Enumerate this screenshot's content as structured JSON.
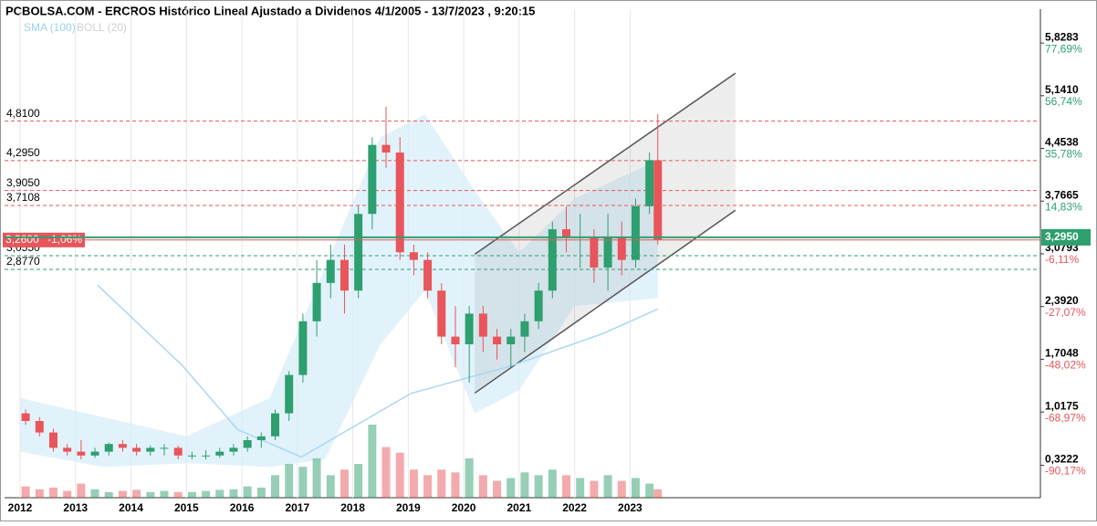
{
  "chart_data": {
    "type": "candlestick",
    "title": "PCBOLSA.COM - ERCROS Histórico Lineal Ajustado a Dividenos 4/1/2005 - 13/7/2023 , 9:20:15",
    "indicators": [
      "SMA (100)",
      "BOLL (20)"
    ],
    "up_color": "#2e9f6e",
    "down_color": "#e8555a",
    "xlim": [
      2011.72,
      2030.4
    ],
    "xticks": [
      2012,
      2013,
      2014,
      2015,
      2016,
      2017,
      2018,
      2019,
      2020,
      2021,
      2022,
      2023
    ],
    "ylim": [
      -0.1,
      6.27
    ],
    "yticks": [
      {
        "value": 5.8283,
        "label": "5,8283"
      },
      {
        "value": 5.141,
        "label": "5,1410"
      },
      {
        "value": 4.4538,
        "label": "4,4538"
      },
      {
        "value": 3.7665,
        "label": "3,7665"
      },
      {
        "value": 3.0793,
        "label": "3,0793"
      },
      {
        "value": 2.392,
        "label": "2,3920"
      },
      {
        "value": 1.7048,
        "label": "1,7048"
      },
      {
        "value": 1.0175,
        "label": "1,0175"
      },
      {
        "value": 0.3222,
        "label": "0,3222"
      }
    ],
    "ytick_changes": [
      "77,69%",
      "56,74%",
      "35,78%",
      "14,83%",
      "-6,11%",
      "-27,07%",
      "-48,02%",
      "-68,97%",
      "-90,17%"
    ],
    "x": [
      2012.1,
      2012.35,
      2012.6,
      2012.85,
      2013.1,
      2013.35,
      2013.6,
      2013.85,
      2014.1,
      2014.35,
      2014.6,
      2014.85,
      2015.1,
      2015.35,
      2015.6,
      2015.85,
      2016.1,
      2016.35,
      2016.6,
      2016.85,
      2017.1,
      2017.35,
      2017.6,
      2017.85,
      2018.1,
      2018.35,
      2018.6,
      2018.85,
      2019.1,
      2019.35,
      2019.6,
      2019.85,
      2020.1,
      2020.35,
      2020.6,
      2020.85,
      2021.1,
      2021.35,
      2021.6,
      2021.85,
      2022.1,
      2022.35,
      2022.6,
      2022.85,
      2023.1,
      2023.35,
      2023.5
    ],
    "open": [
      1.0,
      0.9,
      0.75,
      0.55,
      0.5,
      0.45,
      0.5,
      0.6,
      0.55,
      0.5,
      0.55,
      0.55,
      0.45,
      0.45,
      0.45,
      0.5,
      0.55,
      0.65,
      0.7,
      1.0,
      1.5,
      2.2,
      2.7,
      3.0,
      2.6,
      3.6,
      4.5,
      4.4,
      3.1,
      3.0,
      2.6,
      2.0,
      1.9,
      2.3,
      2.0,
      1.9,
      2.0,
      2.2,
      2.6,
      3.4,
      3.3,
      3.3,
      2.9,
      3.3,
      3.0,
      3.7,
      4.3
    ],
    "high": [
      1.05,
      0.95,
      0.8,
      0.6,
      0.65,
      0.55,
      0.62,
      0.65,
      0.6,
      0.58,
      0.6,
      0.58,
      0.5,
      0.52,
      0.55,
      0.6,
      0.7,
      0.75,
      1.05,
      1.55,
      2.3,
      3.0,
      3.2,
      3.2,
      3.7,
      4.6,
      5.0,
      4.6,
      3.2,
      3.1,
      2.7,
      2.4,
      2.4,
      2.4,
      2.1,
      2.1,
      2.3,
      2.7,
      3.5,
      3.7,
      3.6,
      3.4,
      3.6,
      3.5,
      3.8,
      4.4,
      4.9
    ],
    "low": [
      0.85,
      0.7,
      0.5,
      0.45,
      0.4,
      0.42,
      0.45,
      0.5,
      0.45,
      0.45,
      0.45,
      0.4,
      0.4,
      0.4,
      0.42,
      0.45,
      0.5,
      0.55,
      0.65,
      0.9,
      1.4,
      2.0,
      2.5,
      2.3,
      2.5,
      3.4,
      4.2,
      3.0,
      2.8,
      2.5,
      1.9,
      1.6,
      1.4,
      1.8,
      1.7,
      1.6,
      1.8,
      2.1,
      2.5,
      3.1,
      2.9,
      2.7,
      2.6,
      2.8,
      2.9,
      3.6,
      3.2
    ],
    "close": [
      0.9,
      0.75,
      0.55,
      0.5,
      0.45,
      0.5,
      0.6,
      0.55,
      0.5,
      0.55,
      0.55,
      0.45,
      0.45,
      0.45,
      0.5,
      0.55,
      0.65,
      0.7,
      1.0,
      1.5,
      2.2,
      2.7,
      3.0,
      2.6,
      3.6,
      4.5,
      4.4,
      3.1,
      3.0,
      2.6,
      2.0,
      1.9,
      2.3,
      2.0,
      1.9,
      2.0,
      2.2,
      2.6,
      3.4,
      3.3,
      3.3,
      2.9,
      3.3,
      3.0,
      3.7,
      4.3,
      3.26
    ],
    "volume": [
      20,
      15,
      18,
      12,
      25,
      15,
      10,
      12,
      14,
      10,
      12,
      10,
      10,
      12,
      14,
      15,
      20,
      18,
      40,
      60,
      55,
      70,
      40,
      50,
      60,
      130,
      90,
      80,
      50,
      40,
      50,
      45,
      70,
      40,
      30,
      35,
      45,
      40,
      50,
      40,
      35,
      30,
      40,
      30,
      35,
      25,
      15
    ],
    "sma": {
      "x": [
        2013.4,
        2014.93,
        2015.92,
        2017.07,
        2019.05,
        2020.86,
        2022.51,
        2023.5
      ],
      "values": [
        2.67,
        1.62,
        0.79,
        0.43,
        1.26,
        1.62,
        2.04,
        2.36
      ]
    },
    "bollinger": {
      "x": [
        2012.0,
        2013.5,
        2015.0,
        2016.5,
        2017.5,
        2018.5,
        2019.3,
        2020.2,
        2021.0,
        2022.0,
        2023.5
      ],
      "upper": [
        1.2,
        0.95,
        0.7,
        1.2,
        2.9,
        4.6,
        4.9,
        3.9,
        3.1,
        3.8,
        4.3
      ],
      "lower": [
        0.5,
        0.3,
        0.35,
        0.3,
        0.4,
        1.9,
        2.6,
        1.0,
        1.3,
        2.4,
        2.5
      ]
    },
    "channel": {
      "x": [
        2020.2,
        2024.9
      ],
      "upper": [
        3.075,
        5.435
      ],
      "lower": [
        1.264,
        3.647
      ]
    },
    "levels": [
      {
        "value": 4.81,
        "label": "4,8100",
        "color": "#e8555a"
      },
      {
        "value": 4.295,
        "label": "4,2950",
        "color": "#e8555a"
      },
      {
        "value": 3.905,
        "label": "3,9050",
        "color": "#e8555a"
      },
      {
        "value": 3.7108,
        "label": "3,7108",
        "color": "#e8555a"
      },
      {
        "value": 3.055,
        "label": "3,0550",
        "color": "#2e9f6e"
      },
      {
        "value": 2.877,
        "label": "2,8770",
        "color": "#2e9f6e"
      }
    ],
    "last_price": {
      "value": 3.26,
      "label": "3,2600",
      "change": "-1,06%",
      "color": "#e8555a"
    },
    "current": {
      "value": 3.295,
      "label": "3,2950",
      "color": "#2e9f6e"
    }
  }
}
